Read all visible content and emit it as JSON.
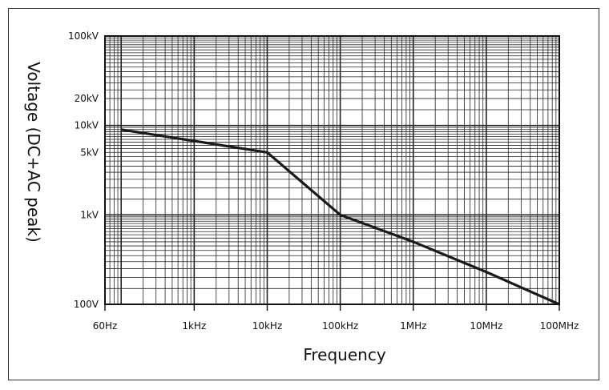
{
  "chart_data": {
    "type": "line",
    "title": "",
    "xlabel": "Frequency",
    "ylabel": "Voltage (DC+AC peak)",
    "x_scale": "log",
    "y_scale": "log",
    "xlim": [
      60,
      100000000
    ],
    "ylim": [
      100,
      100000
    ],
    "grid": true,
    "x_ticks": [
      {
        "value": 60,
        "label": "60Hz"
      },
      {
        "value": 1000,
        "label": "1kHz"
      },
      {
        "value": 10000,
        "label": "10kHz"
      },
      {
        "value": 100000,
        "label": "100kHz"
      },
      {
        "value": 1000000,
        "label": "1MHz"
      },
      {
        "value": 10000000,
        "label": "10MHz"
      },
      {
        "value": 100000000,
        "label": "100MHz"
      }
    ],
    "y_ticks": [
      {
        "value": 100000,
        "label": "100kV"
      },
      {
        "value": 20000,
        "label": "20kV"
      },
      {
        "value": 10000,
        "label": "10kV"
      },
      {
        "value": 5000,
        "label": "5kV"
      },
      {
        "value": 1000,
        "label": "1kV"
      },
      {
        "value": 100,
        "label": "100V"
      }
    ],
    "series": [
      {
        "color": "#1a1a1a",
        "points": [
          {
            "x": 100,
            "y": 9000
          },
          {
            "x": 10000,
            "y": 5000
          },
          {
            "x": 100000,
            "y": 1000
          },
          {
            "x": 1000000,
            "y": 500
          },
          {
            "x": 10000000,
            "y": 230
          },
          {
            "x": 100000000,
            "y": 100
          }
        ]
      }
    ]
  }
}
